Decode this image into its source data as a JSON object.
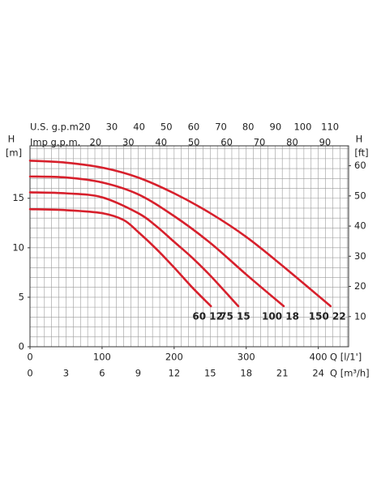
{
  "chart_data": {
    "type": "line",
    "xlim": [
      0,
      442
    ],
    "ylim": [
      0,
      20.3
    ],
    "xticks": [
      0,
      100,
      200,
      300,
      400
    ],
    "yticks": [
      0,
      5,
      10,
      15
    ],
    "x_label": "Q [l/1']",
    "y_label": "H",
    "y_unit": "[m]",
    "y2lim": [
      0,
      66.6
    ],
    "y2ticks": [
      10,
      20,
      30,
      40,
      50,
      60
    ],
    "y2_label": "H",
    "y2_unit": "[ft]",
    "x2lim": [
      0,
      116.8
    ],
    "x2ticks": [
      20,
      30,
      40,
      50,
      60,
      70,
      80,
      90,
      100,
      110
    ],
    "x2_label": "U.S. g.p.m.",
    "x3lim": [
      0,
      97.2
    ],
    "x3ticks": [
      20,
      30,
      40,
      50,
      60,
      70,
      80,
      90
    ],
    "x3_label": "Imp g.p.m.",
    "x4lim": [
      0,
      26.52
    ],
    "x4ticks": [
      0,
      3,
      6,
      9,
      12,
      15,
      18,
      21,
      24
    ],
    "x4_label": "Q [m³/h]",
    "minor_grid": {
      "x": 10,
      "y": 1
    },
    "grid": true,
    "series": [
      {
        "name": "60 12",
        "color": "#d7202c",
        "x": [
          0,
          50,
          100,
          130,
          150,
          175,
          200,
          225,
          251
        ],
        "values": [
          13.9,
          13.8,
          13.5,
          12.8,
          11.6,
          9.9,
          8.0,
          6.0,
          4.1
        ]
      },
      {
        "name": "75 15",
        "color": "#d7202c",
        "x": [
          0,
          50,
          100,
          150,
          175,
          200,
          225,
          250,
          289
        ],
        "values": [
          15.6,
          15.5,
          15.1,
          13.5,
          12.2,
          10.6,
          9.0,
          7.2,
          4.1
        ]
      },
      {
        "name": "100 18",
        "color": "#d7202c",
        "x": [
          0,
          50,
          100,
          150,
          200,
          250,
          300,
          352
        ],
        "values": [
          17.2,
          17.1,
          16.6,
          15.4,
          13.2,
          10.5,
          7.3,
          4.1
        ]
      },
      {
        "name": "150 22",
        "color": "#d7202c",
        "x": [
          0,
          50,
          100,
          150,
          200,
          250,
          300,
          350,
          417
        ],
        "values": [
          18.8,
          18.6,
          18.1,
          17.1,
          15.5,
          13.5,
          11.1,
          8.2,
          4.1
        ]
      }
    ]
  }
}
